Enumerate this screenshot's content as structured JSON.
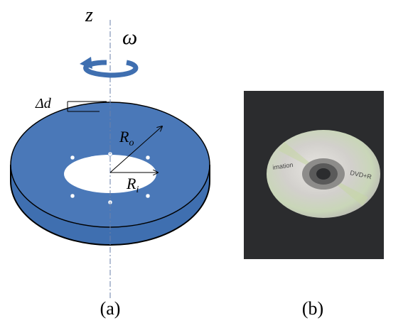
{
  "axis_label": "z",
  "omega_label": "ω",
  "thickness_label": "Δd",
  "outer_radius": {
    "symbol": "R",
    "subscript": "o"
  },
  "inner_radius": {
    "symbol": "R",
    "subscript": "i"
  },
  "photo_text": {
    "brand": "imation",
    "format": "DVD+R"
  },
  "captions": [
    "(a)",
    "(b)"
  ]
}
